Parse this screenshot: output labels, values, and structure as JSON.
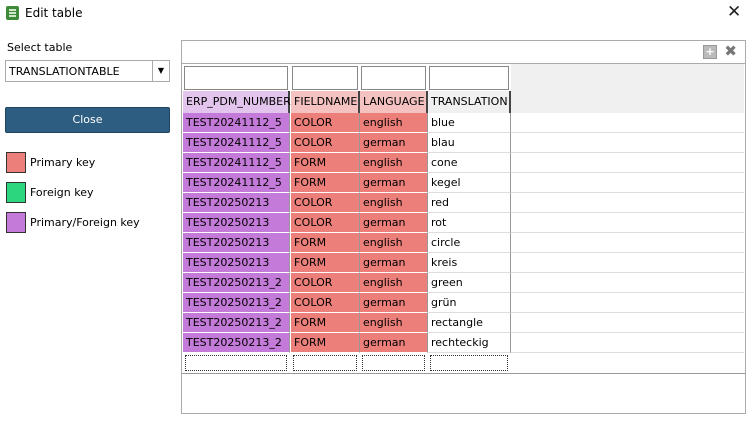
{
  "window": {
    "title": "Edit table",
    "icon": "database-icon",
    "close_icon": "close-icon"
  },
  "sidebar": {
    "select_label": "Select table",
    "selected_table": "TRANSLATIONTABLE",
    "close_button": "Close",
    "legend": [
      {
        "label": "Primary key",
        "color": "#ec7f7a"
      },
      {
        "label": "Foreign key",
        "color": "#2bd67e"
      },
      {
        "label": "Primary/Foreign key",
        "color": "#c47ad8"
      }
    ]
  },
  "grid": {
    "toolbar": {
      "add_icon": "add-row-icon",
      "delete_icon": "delete-icon"
    },
    "columns": [
      {
        "name": "ERP_PDM_NUMBER",
        "key": "primary-foreign",
        "color": "#c47ad8",
        "header_color": "#e3c4ec"
      },
      {
        "name": "FIELDNAME",
        "key": "primary",
        "color": "#ec7f7a",
        "header_color": "#f4c3c1"
      },
      {
        "name": "LANGUAGE",
        "key": "primary",
        "color": "#ec7f7a",
        "header_color": "#f4c3c1"
      },
      {
        "name": "TRANSLATION",
        "key": "none",
        "color": "#ffffff",
        "header_color": "#f0f0f0"
      }
    ],
    "rows": [
      [
        "TEST20241112_5",
        "COLOR",
        "english",
        "blue"
      ],
      [
        "TEST20241112_5",
        "COLOR",
        "german",
        "blau"
      ],
      [
        "TEST20241112_5",
        "FORM",
        "english",
        "cone"
      ],
      [
        "TEST20241112_5",
        "FORM",
        "german",
        "kegel"
      ],
      [
        "TEST20250213",
        "COLOR",
        "english",
        "red"
      ],
      [
        "TEST20250213",
        "COLOR",
        "german",
        "rot"
      ],
      [
        "TEST20250213",
        "FORM",
        "english",
        "circle"
      ],
      [
        "TEST20250213",
        "FORM",
        "german",
        "kreis"
      ],
      [
        "TEST20250213_2",
        "COLOR",
        "english",
        "green"
      ],
      [
        "TEST20250213_2",
        "COLOR",
        "german",
        "grün"
      ],
      [
        "TEST20250213_2",
        "FORM",
        "english",
        "rectangle"
      ],
      [
        "TEST20250213_2",
        "FORM",
        "german",
        "rechteckig"
      ]
    ]
  }
}
